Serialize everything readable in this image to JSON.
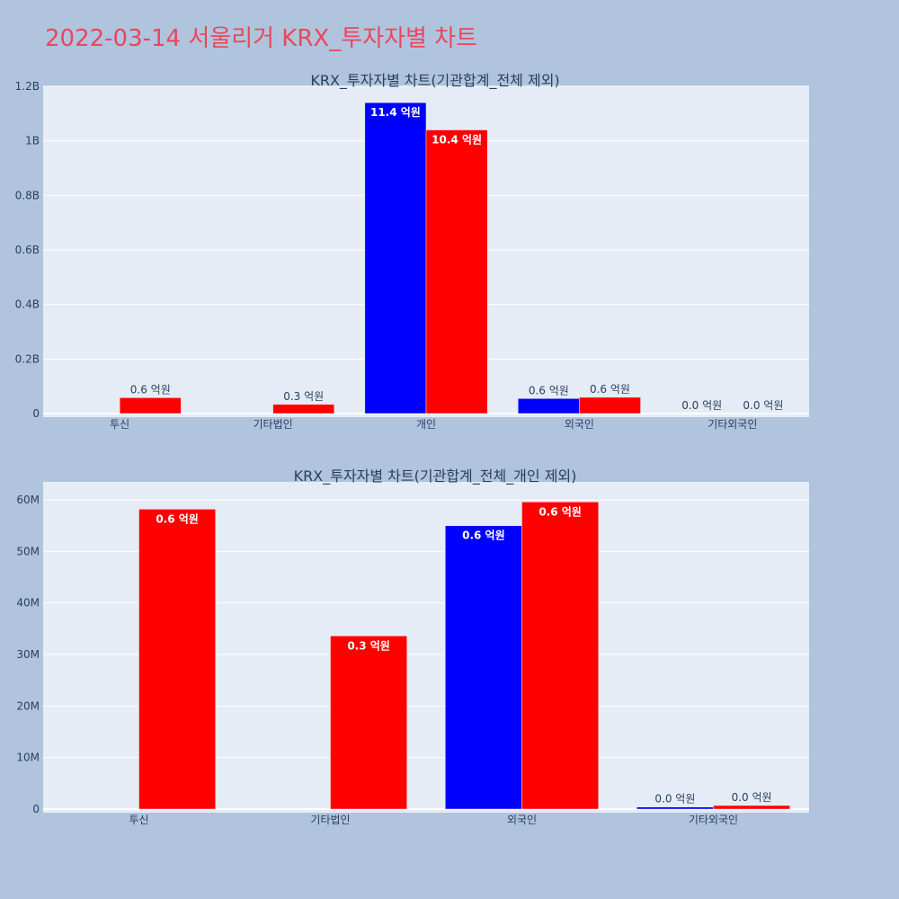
{
  "page": {
    "title": "2022-03-14 서울리거 KRX_투자자별 차트",
    "title_color": "#e8485c",
    "background": "#b0c4de",
    "plot_background": "#e5ecf6"
  },
  "chart_data": [
    {
      "type": "bar",
      "title": "KRX_투자자별 차트(기관합계_전체 제외)",
      "categories": [
        "투신",
        "기타법인",
        "개인",
        "외국인",
        "기타외국인"
      ],
      "ylim": [
        0,
        1200000000
      ],
      "yticks": [
        0,
        200000000,
        400000000,
        600000000,
        800000000,
        1000000000,
        1200000000
      ],
      "ytick_labels": [
        "0",
        "0.2B",
        "0.4B",
        "0.6B",
        "0.8B",
        "1B",
        "1.2B"
      ],
      "grid": true,
      "series": [
        {
          "color": "#0000ff",
          "values": [
            0,
            0,
            1140000000,
            55000000,
            0
          ],
          "labels": [
            "",
            "",
            "11.4 억원",
            "0.6 억원",
            "0.0 억원"
          ]
        },
        {
          "color": "#ff0000",
          "values": [
            58000000,
            33500000,
            1040000000,
            59500000,
            800000
          ],
          "labels": [
            "0.6 억원",
            "0.3 억원",
            "10.4 억원",
            "0.6 억원",
            "0.0 억원"
          ]
        }
      ]
    },
    {
      "type": "bar",
      "title": "KRX_투자자별 차트(기관합계_전체_개인 제외)",
      "categories": [
        "투신",
        "기타법인",
        "외국인",
        "기타외국인"
      ],
      "ylim": [
        0,
        63500000
      ],
      "yticks": [
        0,
        10000000,
        20000000,
        30000000,
        40000000,
        50000000,
        60000000
      ],
      "ytick_labels": [
        "0",
        "10M",
        "20M",
        "30M",
        "40M",
        "50M",
        "60M"
      ],
      "grid": true,
      "series": [
        {
          "color": "#0000ff",
          "values": [
            0,
            0,
            55000000,
            400000
          ],
          "labels": [
            "",
            "",
            "0.6 억원",
            "0.0 억원"
          ]
        },
        {
          "color": "#ff0000",
          "values": [
            58200000,
            33600000,
            59600000,
            700000
          ],
          "labels": [
            "0.6 억원",
            "0.3 억원",
            "0.6 억원",
            "0.0 억원"
          ]
        }
      ]
    }
  ]
}
